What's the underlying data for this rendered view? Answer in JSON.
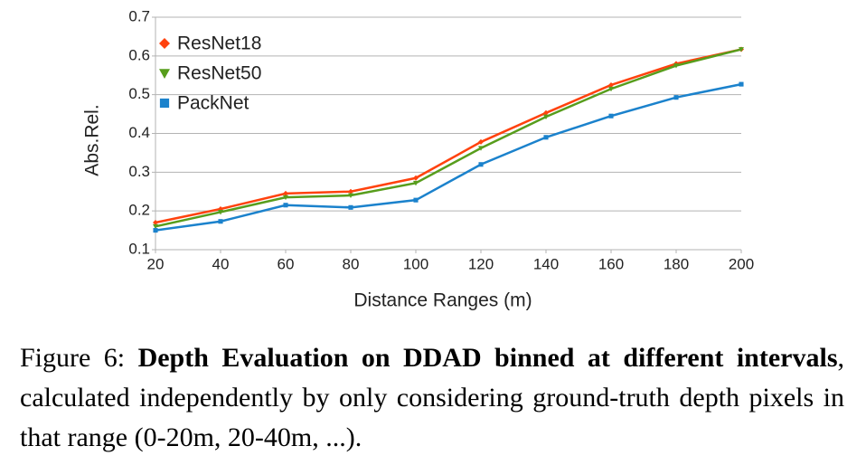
{
  "chart_data": {
    "type": "line",
    "xlabel": "Distance Ranges (m)",
    "ylabel": "Abs.Rel.",
    "x": [
      20,
      40,
      60,
      80,
      100,
      120,
      140,
      160,
      180,
      200
    ],
    "series": [
      {
        "name": "ResNet18",
        "color": "#ff420e",
        "marker": "diamond",
        "values": [
          0.17,
          0.205,
          0.245,
          0.25,
          0.285,
          0.378,
          0.453,
          0.525,
          0.58,
          0.617
        ]
      },
      {
        "name": "ResNet50",
        "color": "#579d1c",
        "marker": "triangle-down",
        "values": [
          0.16,
          0.197,
          0.235,
          0.24,
          0.272,
          0.362,
          0.443,
          0.515,
          0.575,
          0.617
        ]
      },
      {
        "name": "PackNet",
        "color": "#1b82cc",
        "marker": "square",
        "values": [
          0.15,
          0.173,
          0.215,
          0.209,
          0.228,
          0.32,
          0.39,
          0.445,
          0.493,
          0.527
        ]
      }
    ],
    "xlim": [
      20,
      200
    ],
    "xticks": [
      20,
      40,
      60,
      80,
      100,
      120,
      140,
      160,
      180,
      200
    ],
    "ylim": [
      0.1,
      0.7
    ],
    "yticks": [
      0.1,
      0.2,
      0.3,
      0.4,
      0.5,
      0.6,
      0.7
    ],
    "grid": true,
    "legend": "upper left"
  },
  "caption": {
    "label": "Figure 6:",
    "bold": "Depth Evaluation on DDAD binned at different intervals",
    "text": ", calculated independently by only considering ground-truth depth pixels in that range (0-20m, 20-40m, ...)."
  }
}
